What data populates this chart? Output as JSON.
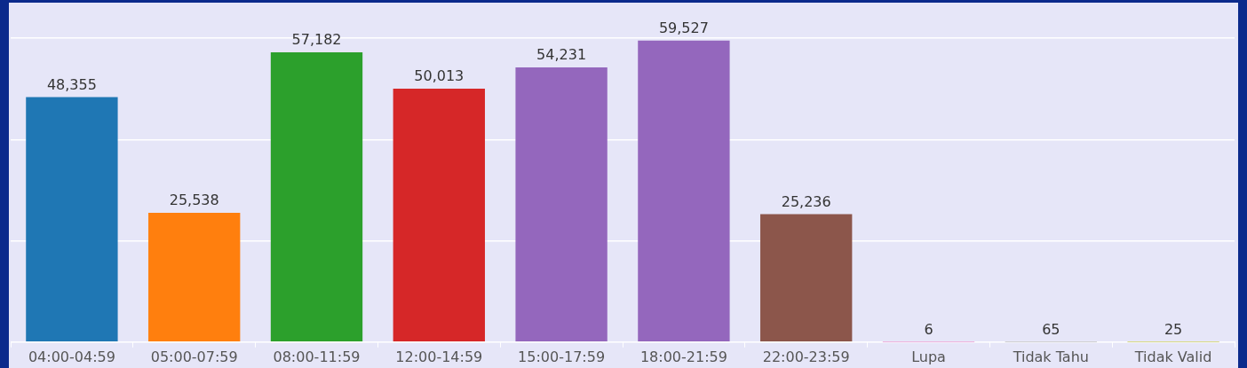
{
  "chart_data": {
    "type": "bar",
    "categories": [
      "04:00-04:59",
      "05:00-07:59",
      "08:00-11:59",
      "12:00-14:59",
      "15:00-17:59",
      "18:00-21:59",
      "22:00-23:59",
      "Lupa",
      "Tidak Tahu",
      "Tidak Valid"
    ],
    "values": [
      48355,
      25538,
      57182,
      50013,
      54231,
      59527,
      25236,
      6,
      65,
      25
    ],
    "colors": [
      "#1f77b4",
      "#ff7f0e",
      "#2ca02c",
      "#d62728",
      "#9467bd",
      "#9467bd",
      "#8c564b",
      "#e377c2",
      "#7f7f7f",
      "#bcbd22"
    ],
    "ylim": [
      0,
      67000
    ],
    "yticks": [
      {
        "value": 0,
        "label": null
      },
      {
        "value": 20000,
        "label": null
      },
      {
        "value": 40000,
        "label": null
      },
      {
        "value": 60000,
        "label": null
      }
    ],
    "value_labels": [
      "48,355",
      "25,538",
      "57,182",
      "50,013",
      "54,231",
      "59,527",
      "25,236",
      "6",
      "65",
      "25"
    ],
    "grid": "y",
    "legend": false
  }
}
